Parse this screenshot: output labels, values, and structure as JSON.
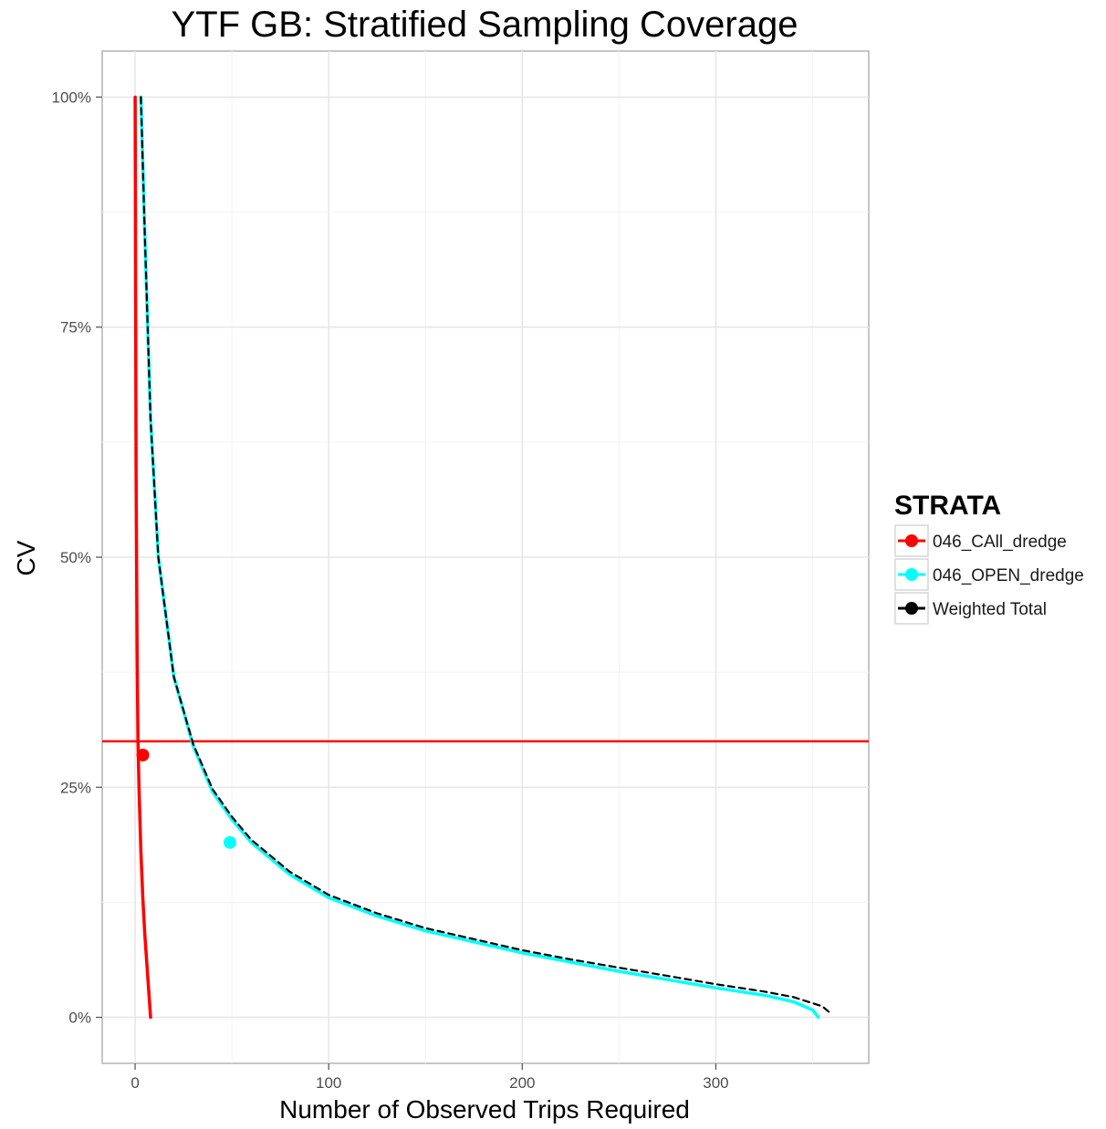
{
  "chart_data": {
    "type": "line",
    "title": "YTF GB: Stratified Sampling Coverage",
    "xlabel": "Number of Observed Trips Required",
    "ylabel": "CV",
    "xlim": [
      -17,
      379
    ],
    "ylim": [
      -0.05,
      1.05
    ],
    "x_ticks": [
      0,
      100,
      200,
      300
    ],
    "y_ticks": [
      0,
      0.25,
      0.5,
      0.75,
      1.0
    ],
    "y_tick_labels": [
      "0%",
      "25%",
      "50%",
      "75%",
      "100%"
    ],
    "grid": true,
    "legend": {
      "title": "STRATA",
      "placement": "right"
    },
    "reference_line": {
      "y": 0.3,
      "color": "#ff0000"
    },
    "series": [
      {
        "name": "046_CAll_dredge",
        "color": "#ff0000",
        "style": "solid",
        "x": [
          0,
          0.5,
          1,
          1.5,
          2,
          3,
          4,
          5,
          6,
          7,
          8
        ],
        "y": [
          1.0,
          0.6,
          0.4,
          0.3,
          0.25,
          0.18,
          0.13,
          0.09,
          0.06,
          0.03,
          0.0
        ],
        "point": {
          "x": 4,
          "y": 0.285
        }
      },
      {
        "name": "046_OPEN_dredge",
        "color": "#00ffff",
        "style": "solid",
        "x": [
          3,
          5,
          8,
          12,
          20,
          30,
          40,
          50,
          60,
          80,
          100,
          125,
          150,
          175,
          200,
          225,
          250,
          275,
          300,
          325,
          340,
          350,
          353
        ],
        "y": [
          1.0,
          0.85,
          0.65,
          0.5,
          0.37,
          0.295,
          0.245,
          0.215,
          0.19,
          0.155,
          0.13,
          0.11,
          0.094,
          0.082,
          0.07,
          0.06,
          0.05,
          0.041,
          0.032,
          0.024,
          0.017,
          0.008,
          0.0
        ],
        "point": {
          "x": 49,
          "y": 0.19
        }
      },
      {
        "name": "Weighted Total",
        "color": "#000000",
        "style": "dashed",
        "x": [
          3,
          5,
          8,
          12,
          20,
          30,
          40,
          50,
          60,
          80,
          100,
          125,
          150,
          175,
          200,
          225,
          250,
          275,
          300,
          325,
          340,
          355,
          360
        ],
        "y": [
          1.0,
          0.85,
          0.65,
          0.5,
          0.37,
          0.297,
          0.248,
          0.218,
          0.193,
          0.158,
          0.133,
          0.113,
          0.097,
          0.085,
          0.073,
          0.063,
          0.054,
          0.045,
          0.036,
          0.028,
          0.022,
          0.012,
          0.003
        ]
      }
    ]
  }
}
